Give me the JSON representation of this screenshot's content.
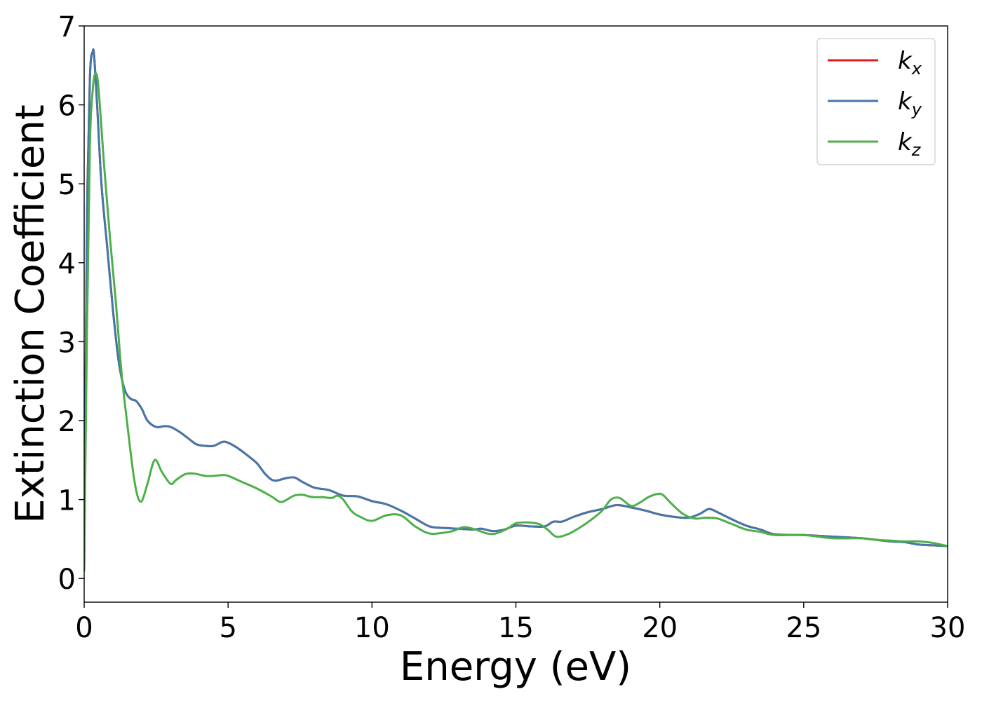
{
  "chart_data": {
    "type": "line",
    "title": "",
    "xlabel": "Energy (eV)",
    "ylabel": "Extinction Coefficient",
    "xlim": [
      0,
      30
    ],
    "ylim": [
      -0.3,
      7
    ],
    "xticks": [
      0,
      5,
      10,
      15,
      20,
      25,
      30
    ],
    "yticks": [
      0,
      1,
      2,
      3,
      4,
      5,
      6,
      7
    ],
    "grid": false,
    "legend_position": "top-right",
    "series": [
      {
        "name": "k_x",
        "label_main": "k",
        "label_sub": "x",
        "color": "#e41a1c",
        "x": [
          0,
          0.05,
          0.1,
          0.2,
          0.3,
          0.35,
          0.45,
          0.6,
          0.8,
          1.0,
          1.2,
          1.4,
          1.6,
          1.8,
          2.0,
          2.2,
          2.5,
          2.8,
          3.0,
          3.3,
          3.6,
          3.9,
          4.2,
          4.5,
          4.8,
          5.0,
          5.3,
          5.6,
          6.0,
          6.3,
          6.6,
          7.0,
          7.3,
          7.6,
          8.0,
          8.5,
          9.0,
          9.5,
          10.0,
          10.5,
          11.0,
          11.5,
          12.0,
          12.5,
          13.0,
          13.5,
          13.8,
          14.2,
          14.6,
          15.0,
          15.5,
          16.0,
          16.3,
          16.6,
          17.0,
          17.5,
          18.0,
          18.5,
          19.0,
          19.5,
          20.0,
          20.5,
          21.0,
          21.4,
          21.7,
          22.0,
          22.5,
          23.0,
          23.5,
          24.0,
          25.0,
          26.0,
          27.0,
          28.0,
          28.5,
          29.0,
          29.5,
          30.0
        ],
        "y": [
          0.1,
          2.5,
          4.6,
          6.35,
          6.68,
          6.6,
          6.0,
          5.0,
          4.2,
          3.4,
          2.75,
          2.4,
          2.28,
          2.25,
          2.15,
          2.0,
          1.92,
          1.93,
          1.92,
          1.86,
          1.78,
          1.7,
          1.68,
          1.68,
          1.73,
          1.72,
          1.66,
          1.58,
          1.46,
          1.32,
          1.24,
          1.27,
          1.28,
          1.22,
          1.15,
          1.12,
          1.05,
          1.04,
          0.98,
          0.94,
          0.86,
          0.76,
          0.66,
          0.64,
          0.63,
          0.62,
          0.63,
          0.6,
          0.62,
          0.67,
          0.66,
          0.66,
          0.72,
          0.72,
          0.78,
          0.84,
          0.88,
          0.93,
          0.9,
          0.86,
          0.81,
          0.78,
          0.77,
          0.82,
          0.88,
          0.84,
          0.75,
          0.67,
          0.62,
          0.56,
          0.55,
          0.53,
          0.51,
          0.47,
          0.46,
          0.43,
          0.42,
          0.41
        ]
      },
      {
        "name": "k_y",
        "label_main": "k",
        "label_sub": "y",
        "color": "#4477aa",
        "x": [
          0,
          0.05,
          0.1,
          0.2,
          0.3,
          0.35,
          0.45,
          0.6,
          0.8,
          1.0,
          1.2,
          1.4,
          1.6,
          1.8,
          2.0,
          2.2,
          2.5,
          2.8,
          3.0,
          3.3,
          3.6,
          3.9,
          4.2,
          4.5,
          4.8,
          5.0,
          5.3,
          5.6,
          6.0,
          6.3,
          6.6,
          7.0,
          7.3,
          7.6,
          8.0,
          8.5,
          9.0,
          9.5,
          10.0,
          10.5,
          11.0,
          11.5,
          12.0,
          12.5,
          13.0,
          13.5,
          13.8,
          14.2,
          14.6,
          15.0,
          15.5,
          16.0,
          16.3,
          16.6,
          17.0,
          17.5,
          18.0,
          18.5,
          19.0,
          19.5,
          20.0,
          20.5,
          21.0,
          21.4,
          21.7,
          22.0,
          22.5,
          23.0,
          23.5,
          24.0,
          25.0,
          26.0,
          27.0,
          28.0,
          28.5,
          29.0,
          29.5,
          30.0
        ],
        "y": [
          0.1,
          2.5,
          4.6,
          6.35,
          6.68,
          6.6,
          6.0,
          5.0,
          4.2,
          3.4,
          2.75,
          2.4,
          2.28,
          2.25,
          2.15,
          2.0,
          1.92,
          1.93,
          1.92,
          1.86,
          1.78,
          1.7,
          1.68,
          1.68,
          1.73,
          1.72,
          1.66,
          1.58,
          1.46,
          1.32,
          1.24,
          1.27,
          1.28,
          1.22,
          1.15,
          1.12,
          1.05,
          1.04,
          0.98,
          0.94,
          0.86,
          0.76,
          0.66,
          0.64,
          0.63,
          0.62,
          0.63,
          0.6,
          0.62,
          0.67,
          0.66,
          0.66,
          0.72,
          0.72,
          0.78,
          0.84,
          0.88,
          0.93,
          0.9,
          0.86,
          0.81,
          0.78,
          0.77,
          0.82,
          0.88,
          0.84,
          0.75,
          0.67,
          0.62,
          0.56,
          0.55,
          0.53,
          0.51,
          0.47,
          0.46,
          0.43,
          0.42,
          0.41
        ]
      },
      {
        "name": "k_z",
        "label_main": "k",
        "label_sub": "z",
        "color": "#4daf4a",
        "x": [
          0,
          0.1,
          0.2,
          0.3,
          0.4,
          0.5,
          0.7,
          0.9,
          1.1,
          1.3,
          1.5,
          1.7,
          1.85,
          2.0,
          2.2,
          2.45,
          2.7,
          3.0,
          3.2,
          3.5,
          3.8,
          4.2,
          4.5,
          4.8,
          5.0,
          5.5,
          6.0,
          6.5,
          6.8,
          7.0,
          7.3,
          7.6,
          7.8,
          8.0,
          8.3,
          8.6,
          8.8,
          9.0,
          9.3,
          9.6,
          10.0,
          10.5,
          11.0,
          11.5,
          12.0,
          12.5,
          12.8,
          13.2,
          13.6,
          14.0,
          14.3,
          14.7,
          15.0,
          15.4,
          15.8,
          16.1,
          16.4,
          16.8,
          17.2,
          17.6,
          18.0,
          18.3,
          18.6,
          19.0,
          19.3,
          19.6,
          19.9,
          20.1,
          20.4,
          20.8,
          21.2,
          21.6,
          22.0,
          22.5,
          23.0,
          23.5,
          24.0,
          25.0,
          26.0,
          27.0,
          27.5,
          28.0,
          28.5,
          29.0,
          29.5,
          30.0
        ],
        "y": [
          0.1,
          3.2,
          5.5,
          6.2,
          6.4,
          6.2,
          5.2,
          4.3,
          3.5,
          2.6,
          1.95,
          1.35,
          1.05,
          0.98,
          1.2,
          1.5,
          1.35,
          1.2,
          1.25,
          1.32,
          1.33,
          1.3,
          1.3,
          1.31,
          1.3,
          1.22,
          1.14,
          1.04,
          0.97,
          0.99,
          1.05,
          1.06,
          1.04,
          1.03,
          1.03,
          1.02,
          1.05,
          1.0,
          0.85,
          0.78,
          0.73,
          0.8,
          0.8,
          0.66,
          0.57,
          0.58,
          0.6,
          0.65,
          0.62,
          0.57,
          0.57,
          0.63,
          0.7,
          0.71,
          0.69,
          0.62,
          0.53,
          0.56,
          0.64,
          0.74,
          0.86,
          1.0,
          1.02,
          0.92,
          0.96,
          1.03,
          1.07,
          1.06,
          0.95,
          0.82,
          0.76,
          0.77,
          0.76,
          0.69,
          0.62,
          0.59,
          0.55,
          0.55,
          0.51,
          0.51,
          0.49,
          0.48,
          0.47,
          0.47,
          0.45,
          0.41
        ]
      }
    ]
  }
}
